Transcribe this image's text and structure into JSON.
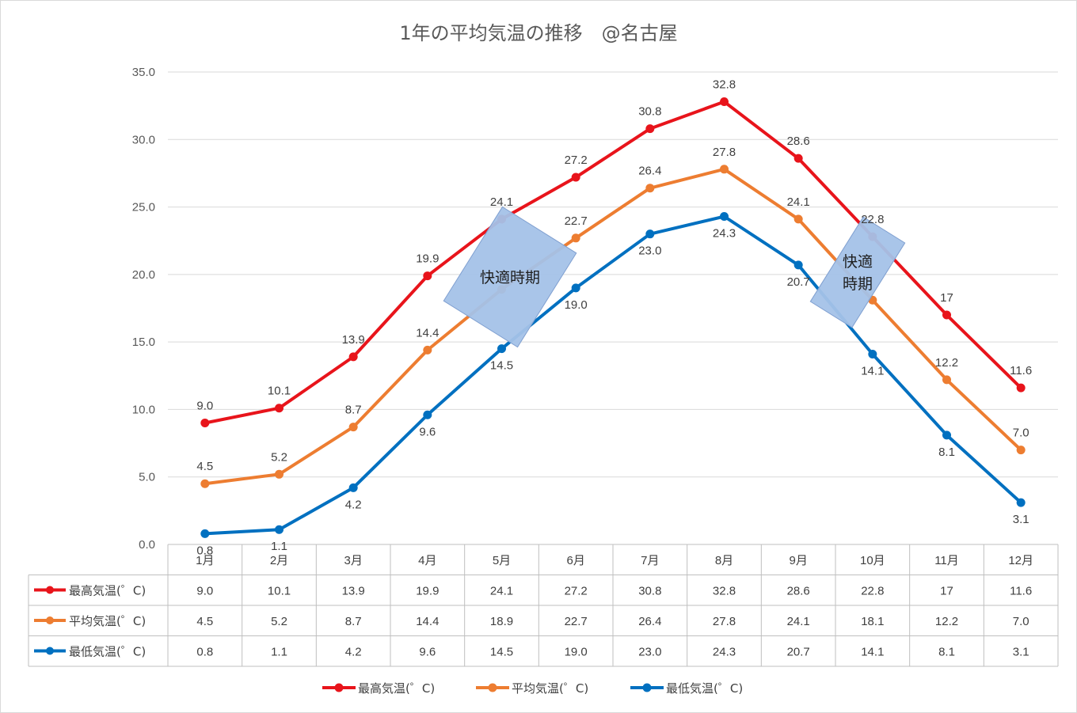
{
  "chart_data": {
    "type": "line",
    "title": "1年の平均気温の推移　@名古屋",
    "categories": [
      "1月",
      "2月",
      "3月",
      "4月",
      "5月",
      "6月",
      "7月",
      "8月",
      "9月",
      "10月",
      "11月",
      "12月"
    ],
    "ylim": [
      0,
      35
    ],
    "yticks": [
      "0.0",
      "5.0",
      "10.0",
      "15.0",
      "20.0",
      "25.0",
      "30.0",
      "35.0"
    ],
    "grid": true,
    "legend_position": "bottom",
    "data_table": true,
    "series": [
      {
        "name": "最高気温(゜C)",
        "color": "#e8141b",
        "values": [
          9.0,
          10.1,
          13.9,
          19.9,
          24.1,
          27.2,
          30.8,
          32.8,
          28.6,
          22.8,
          17,
          11.6
        ],
        "labels": [
          "9.0",
          "10.1",
          "13.9",
          "19.9",
          "24.1",
          "27.2",
          "30.8",
          "32.8",
          "28.6",
          "22.8",
          "17",
          "11.6"
        ],
        "label_position": "above"
      },
      {
        "name": "平均気温(゜C)",
        "color": "#ed7d31",
        "values": [
          4.5,
          5.2,
          8.7,
          14.4,
          18.9,
          22.7,
          26.4,
          27.8,
          24.1,
          18.1,
          12.2,
          7.0
        ],
        "labels": [
          "4.5",
          "5.2",
          "8.7",
          "14.4",
          "18.9",
          "22.7",
          "26.4",
          "27.8",
          "24.1",
          "18.1",
          "12.2",
          "7.0"
        ],
        "label_position": "above"
      },
      {
        "name": "最低気温(゜C)",
        "color": "#0070c0",
        "values": [
          0.8,
          1.1,
          4.2,
          9.6,
          14.5,
          19.0,
          23.0,
          24.3,
          20.7,
          14.1,
          8.1,
          3.1
        ],
        "labels": [
          "0.8",
          "1.1",
          "4.2",
          "9.6",
          "14.5",
          "19.0",
          "23.0",
          "24.3",
          "20.7",
          "14.1",
          "8.1",
          "3.1"
        ],
        "label_position": "below"
      }
    ],
    "annotations": [
      {
        "text": "快適時期",
        "lines": [
          "快適時期"
        ],
        "fill": "#a4c2e8"
      },
      {
        "text": "快適時期",
        "lines": [
          "快適",
          "時期"
        ],
        "fill": "#a4c2e8"
      }
    ]
  }
}
